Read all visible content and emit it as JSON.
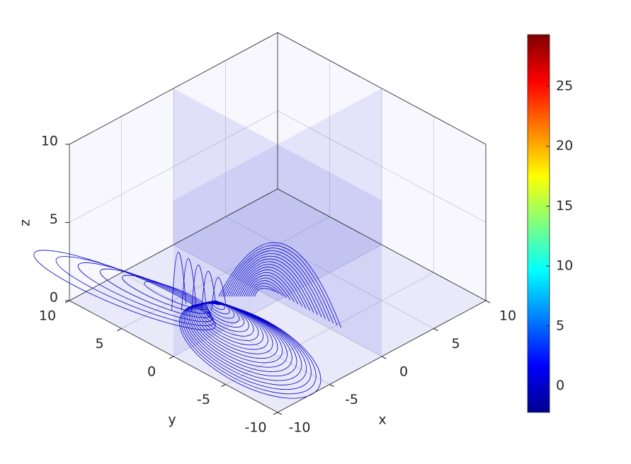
{
  "chart_data": {
    "type": "contourslice",
    "xlabel": "x",
    "ylabel": "y",
    "zlabel": "z",
    "xlim": [
      -10,
      10
    ],
    "ylim": [
      -10,
      10
    ],
    "zlim": [
      0,
      10
    ],
    "xticks": [
      -10,
      -5,
      0,
      5,
      10
    ],
    "yticks": [
      -10,
      -5,
      0,
      5,
      10
    ],
    "zticks": [
      0,
      5,
      10
    ],
    "slices": {
      "x": [
        0
      ],
      "y": [
        0
      ],
      "z": [
        0
      ]
    },
    "line_color": "#0000cc",
    "grid": true,
    "colorbar": {
      "clim": [
        -2.2,
        29.3
      ],
      "ticks": [
        0,
        5,
        10,
        15,
        20,
        25
      ],
      "colormap": "jet"
    }
  }
}
